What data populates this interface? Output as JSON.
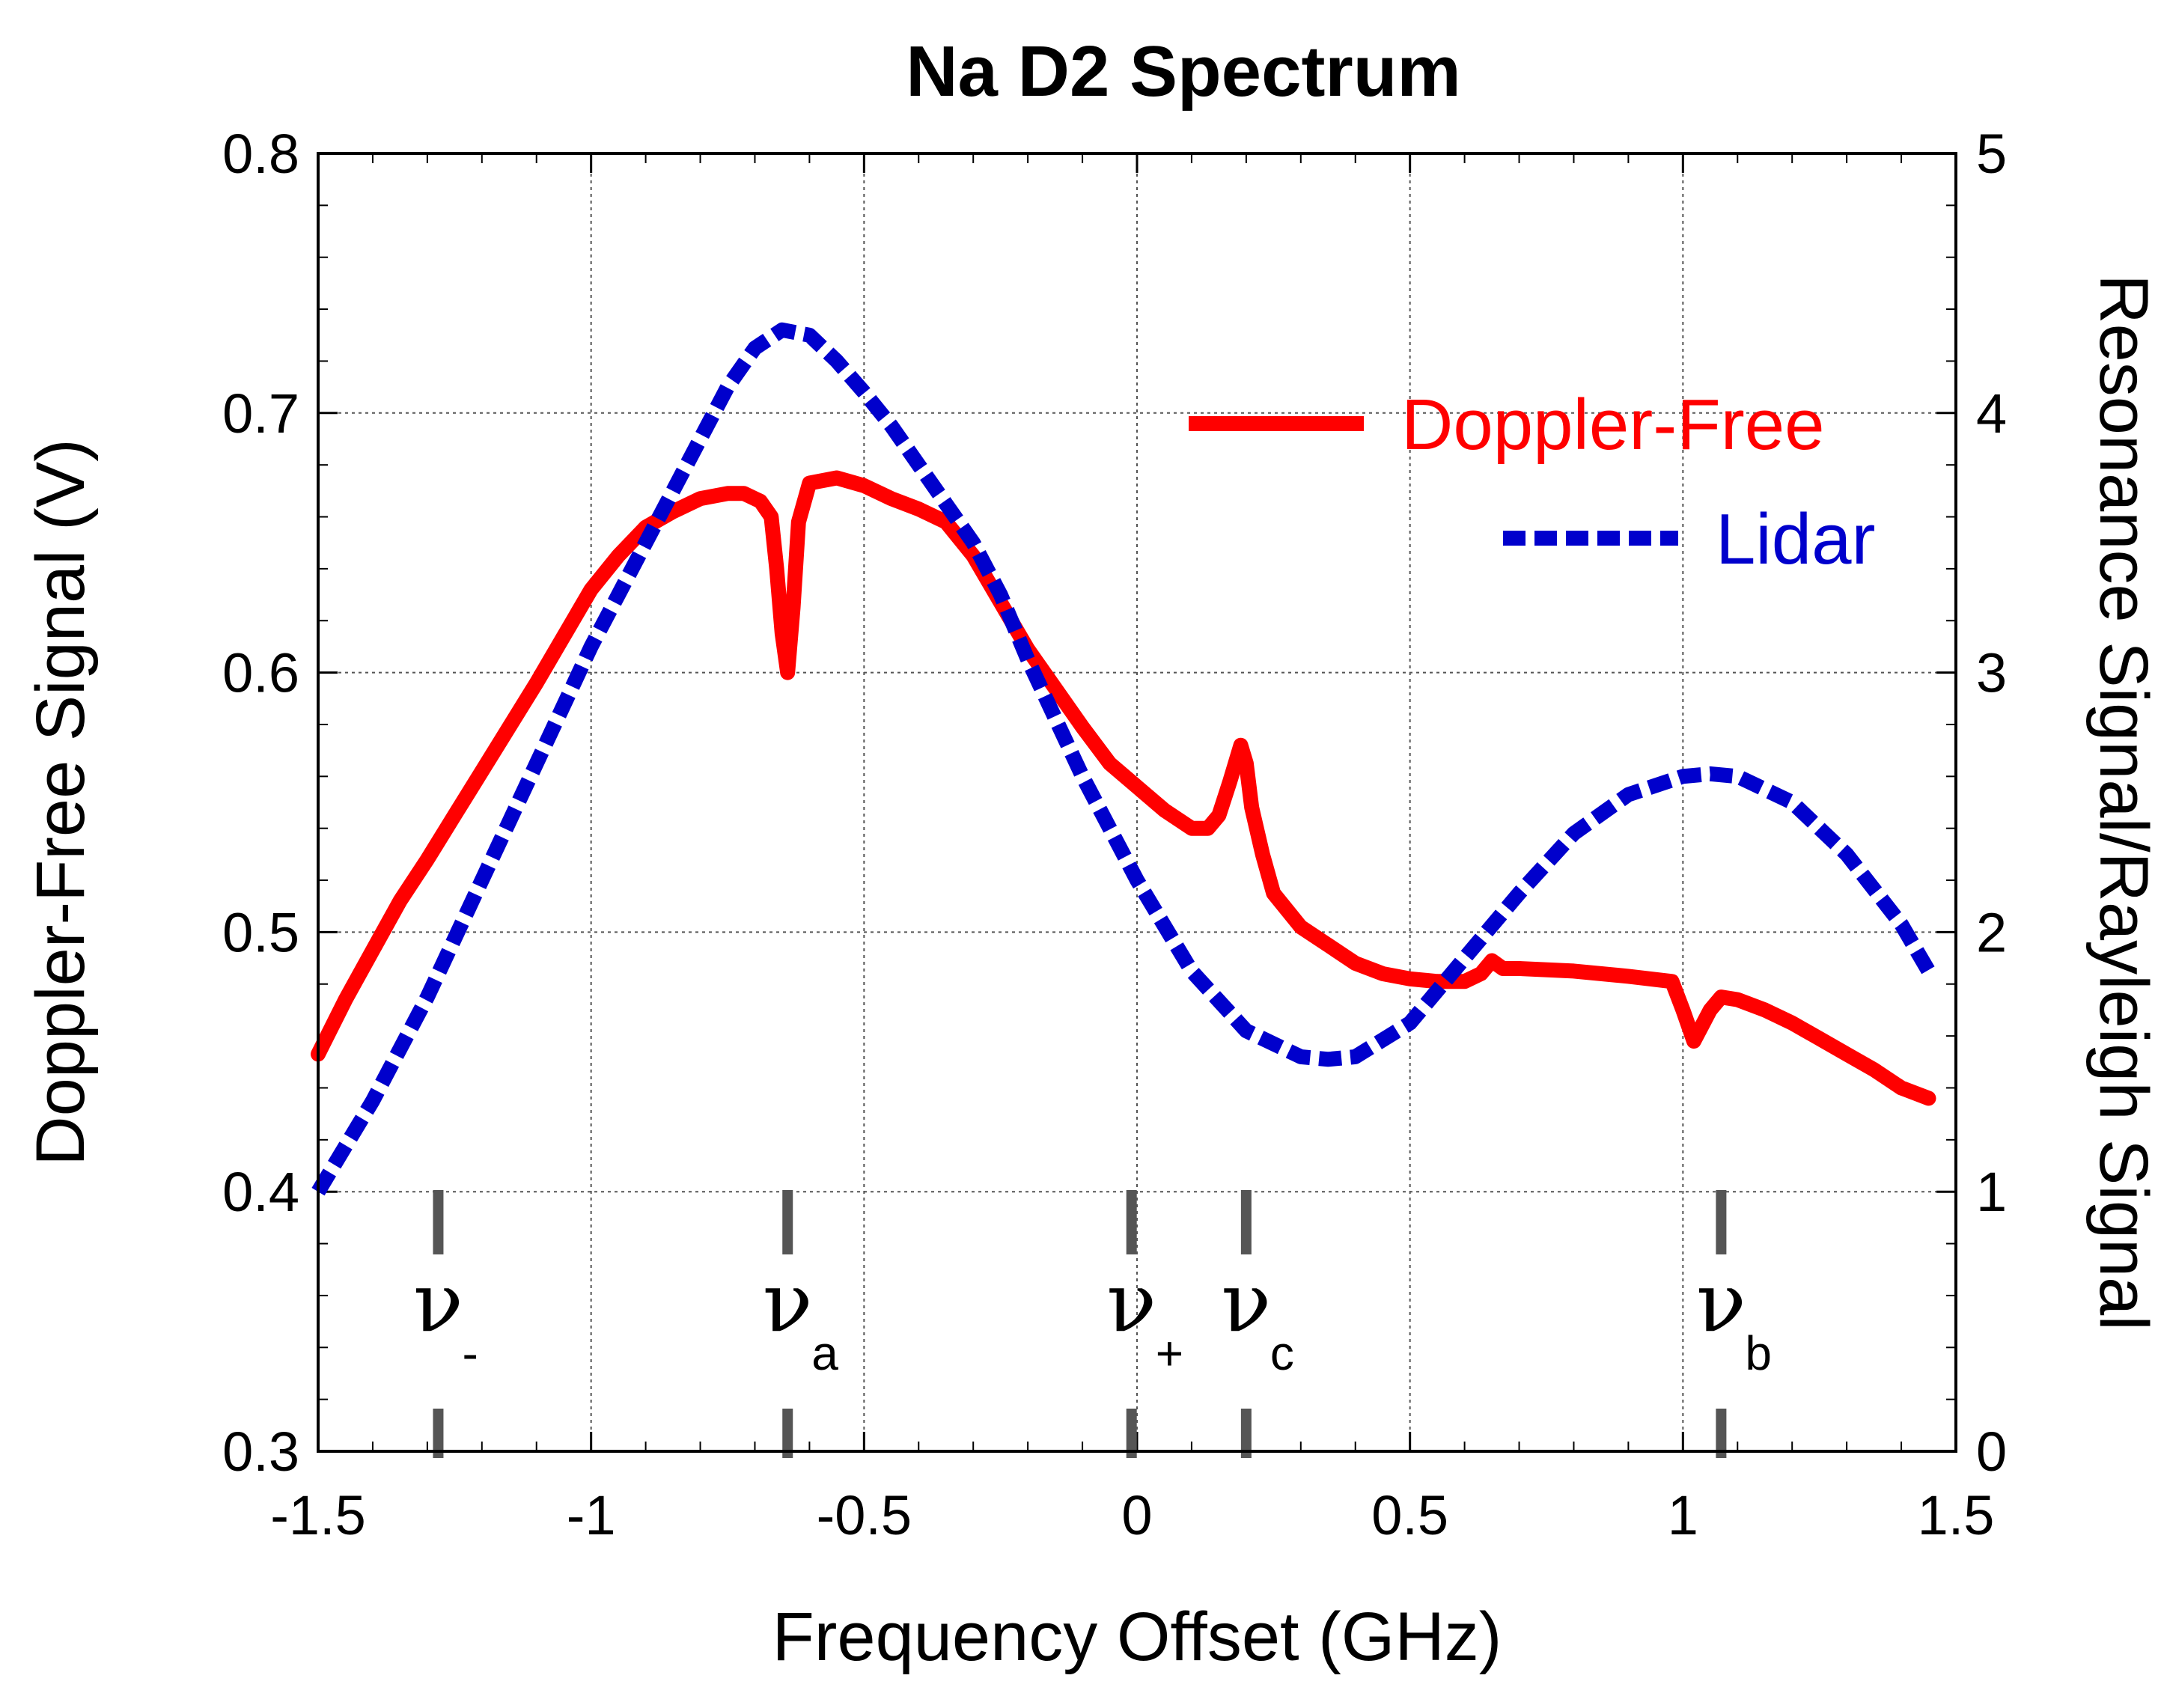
{
  "chart_data": {
    "type": "line",
    "title": "Na D2 Spectrum",
    "xlabel": "Frequency Offset (GHz)",
    "ylabel": "Doppler-Free Signal (V)",
    "y2label": "Resonance Signal/Rayleigh Signal",
    "xlim": [
      -1.5,
      1.5
    ],
    "ylim": [
      0.3,
      0.8
    ],
    "y2lim": [
      0,
      5
    ],
    "xticks": [
      -1.5,
      -1,
      -0.5,
      0,
      0.5,
      1,
      1.5
    ],
    "xtick_labels": [
      "-1.5",
      "-1",
      "-0.5",
      "0",
      "0.5",
      "1",
      "1.5"
    ],
    "yticks": [
      0.3,
      0.4,
      0.5,
      0.6,
      0.7,
      0.8
    ],
    "ytick_labels": [
      "0.3",
      "0.4",
      "0.5",
      "0.6",
      "0.7",
      "0.8"
    ],
    "y2ticks": [
      0,
      1,
      2,
      3,
      4,
      5
    ],
    "y2tick_labels": [
      "0",
      "1",
      "2",
      "3",
      "4",
      "5"
    ],
    "grid": true,
    "legend_position": "top-right",
    "series": [
      {
        "name": "Doppler-Free",
        "axis": "left",
        "color": "#ff0000",
        "style": "solid",
        "x": [
          -1.5,
          -1.45,
          -1.4,
          -1.35,
          -1.3,
          -1.25,
          -1.2,
          -1.15,
          -1.1,
          -1.05,
          -1.0,
          -0.95,
          -0.9,
          -0.85,
          -0.8,
          -0.75,
          -0.72,
          -0.69,
          -0.67,
          -0.66,
          -0.65,
          -0.64,
          -0.63,
          -0.62,
          -0.6,
          -0.55,
          -0.5,
          -0.45,
          -0.4,
          -0.35,
          -0.3,
          -0.25,
          -0.2,
          -0.15,
          -0.1,
          -0.05,
          0.0,
          0.05,
          0.1,
          0.13,
          0.15,
          0.17,
          0.19,
          0.2,
          0.21,
          0.23,
          0.25,
          0.3,
          0.35,
          0.4,
          0.45,
          0.5,
          0.55,
          0.6,
          0.63,
          0.65,
          0.67,
          0.7,
          0.8,
          0.9,
          0.98,
          1.0,
          1.02,
          1.03,
          1.05,
          1.07,
          1.1,
          1.15,
          1.2,
          1.25,
          1.3,
          1.35,
          1.4,
          1.45
        ],
        "y": [
          0.453,
          0.474,
          0.493,
          0.512,
          0.528,
          0.545,
          0.562,
          0.579,
          0.596,
          0.614,
          0.632,
          0.645,
          0.656,
          0.662,
          0.667,
          0.669,
          0.669,
          0.666,
          0.66,
          0.64,
          0.615,
          0.6,
          0.625,
          0.658,
          0.673,
          0.675,
          0.672,
          0.667,
          0.663,
          0.658,
          0.645,
          0.627,
          0.609,
          0.594,
          0.579,
          0.565,
          0.556,
          0.547,
          0.54,
          0.54,
          0.545,
          0.558,
          0.572,
          0.565,
          0.548,
          0.53,
          0.515,
          0.502,
          0.495,
          0.488,
          0.484,
          0.482,
          0.481,
          0.481,
          0.484,
          0.489,
          0.486,
          0.486,
          0.485,
          0.483,
          0.481,
          0.47,
          0.458,
          0.462,
          0.47,
          0.475,
          0.474,
          0.47,
          0.465,
          0.459,
          0.453,
          0.447,
          0.44,
          0.436
        ]
      },
      {
        "name": "Lidar",
        "axis": "right",
        "color": "#0000cc",
        "style": "dashed",
        "x": [
          -1.5,
          -1.4,
          -1.3,
          -1.2,
          -1.1,
          -1.0,
          -0.9,
          -0.8,
          -0.75,
          -0.7,
          -0.65,
          -0.6,
          -0.55,
          -0.5,
          -0.45,
          -0.4,
          -0.35,
          -0.3,
          -0.25,
          -0.2,
          -0.1,
          0.0,
          0.1,
          0.2,
          0.3,
          0.35,
          0.4,
          0.5,
          0.6,
          0.7,
          0.8,
          0.9,
          1.0,
          1.05,
          1.1,
          1.2,
          1.3,
          1.4,
          1.45
        ],
        "y": [
          1.0,
          1.35,
          1.75,
          2.2,
          2.65,
          3.1,
          3.5,
          3.9,
          4.1,
          4.25,
          4.32,
          4.3,
          4.2,
          4.08,
          3.95,
          3.8,
          3.65,
          3.5,
          3.3,
          3.05,
          2.6,
          2.2,
          1.85,
          1.62,
          1.52,
          1.51,
          1.52,
          1.65,
          1.9,
          2.15,
          2.38,
          2.53,
          2.6,
          2.61,
          2.6,
          2.5,
          2.3,
          2.03,
          1.85
        ]
      }
    ],
    "markers": [
      {
        "symbol": "ν",
        "sub": "-",
        "x": -1.28
      },
      {
        "symbol": "ν",
        "sub": "a",
        "x": -0.64
      },
      {
        "symbol": "ν",
        "sub": "+",
        "x": -0.01
      },
      {
        "symbol": "ν",
        "sub": "c",
        "x": 0.2
      },
      {
        "symbol": "ν",
        "sub": "b",
        "x": 1.07
      }
    ]
  }
}
